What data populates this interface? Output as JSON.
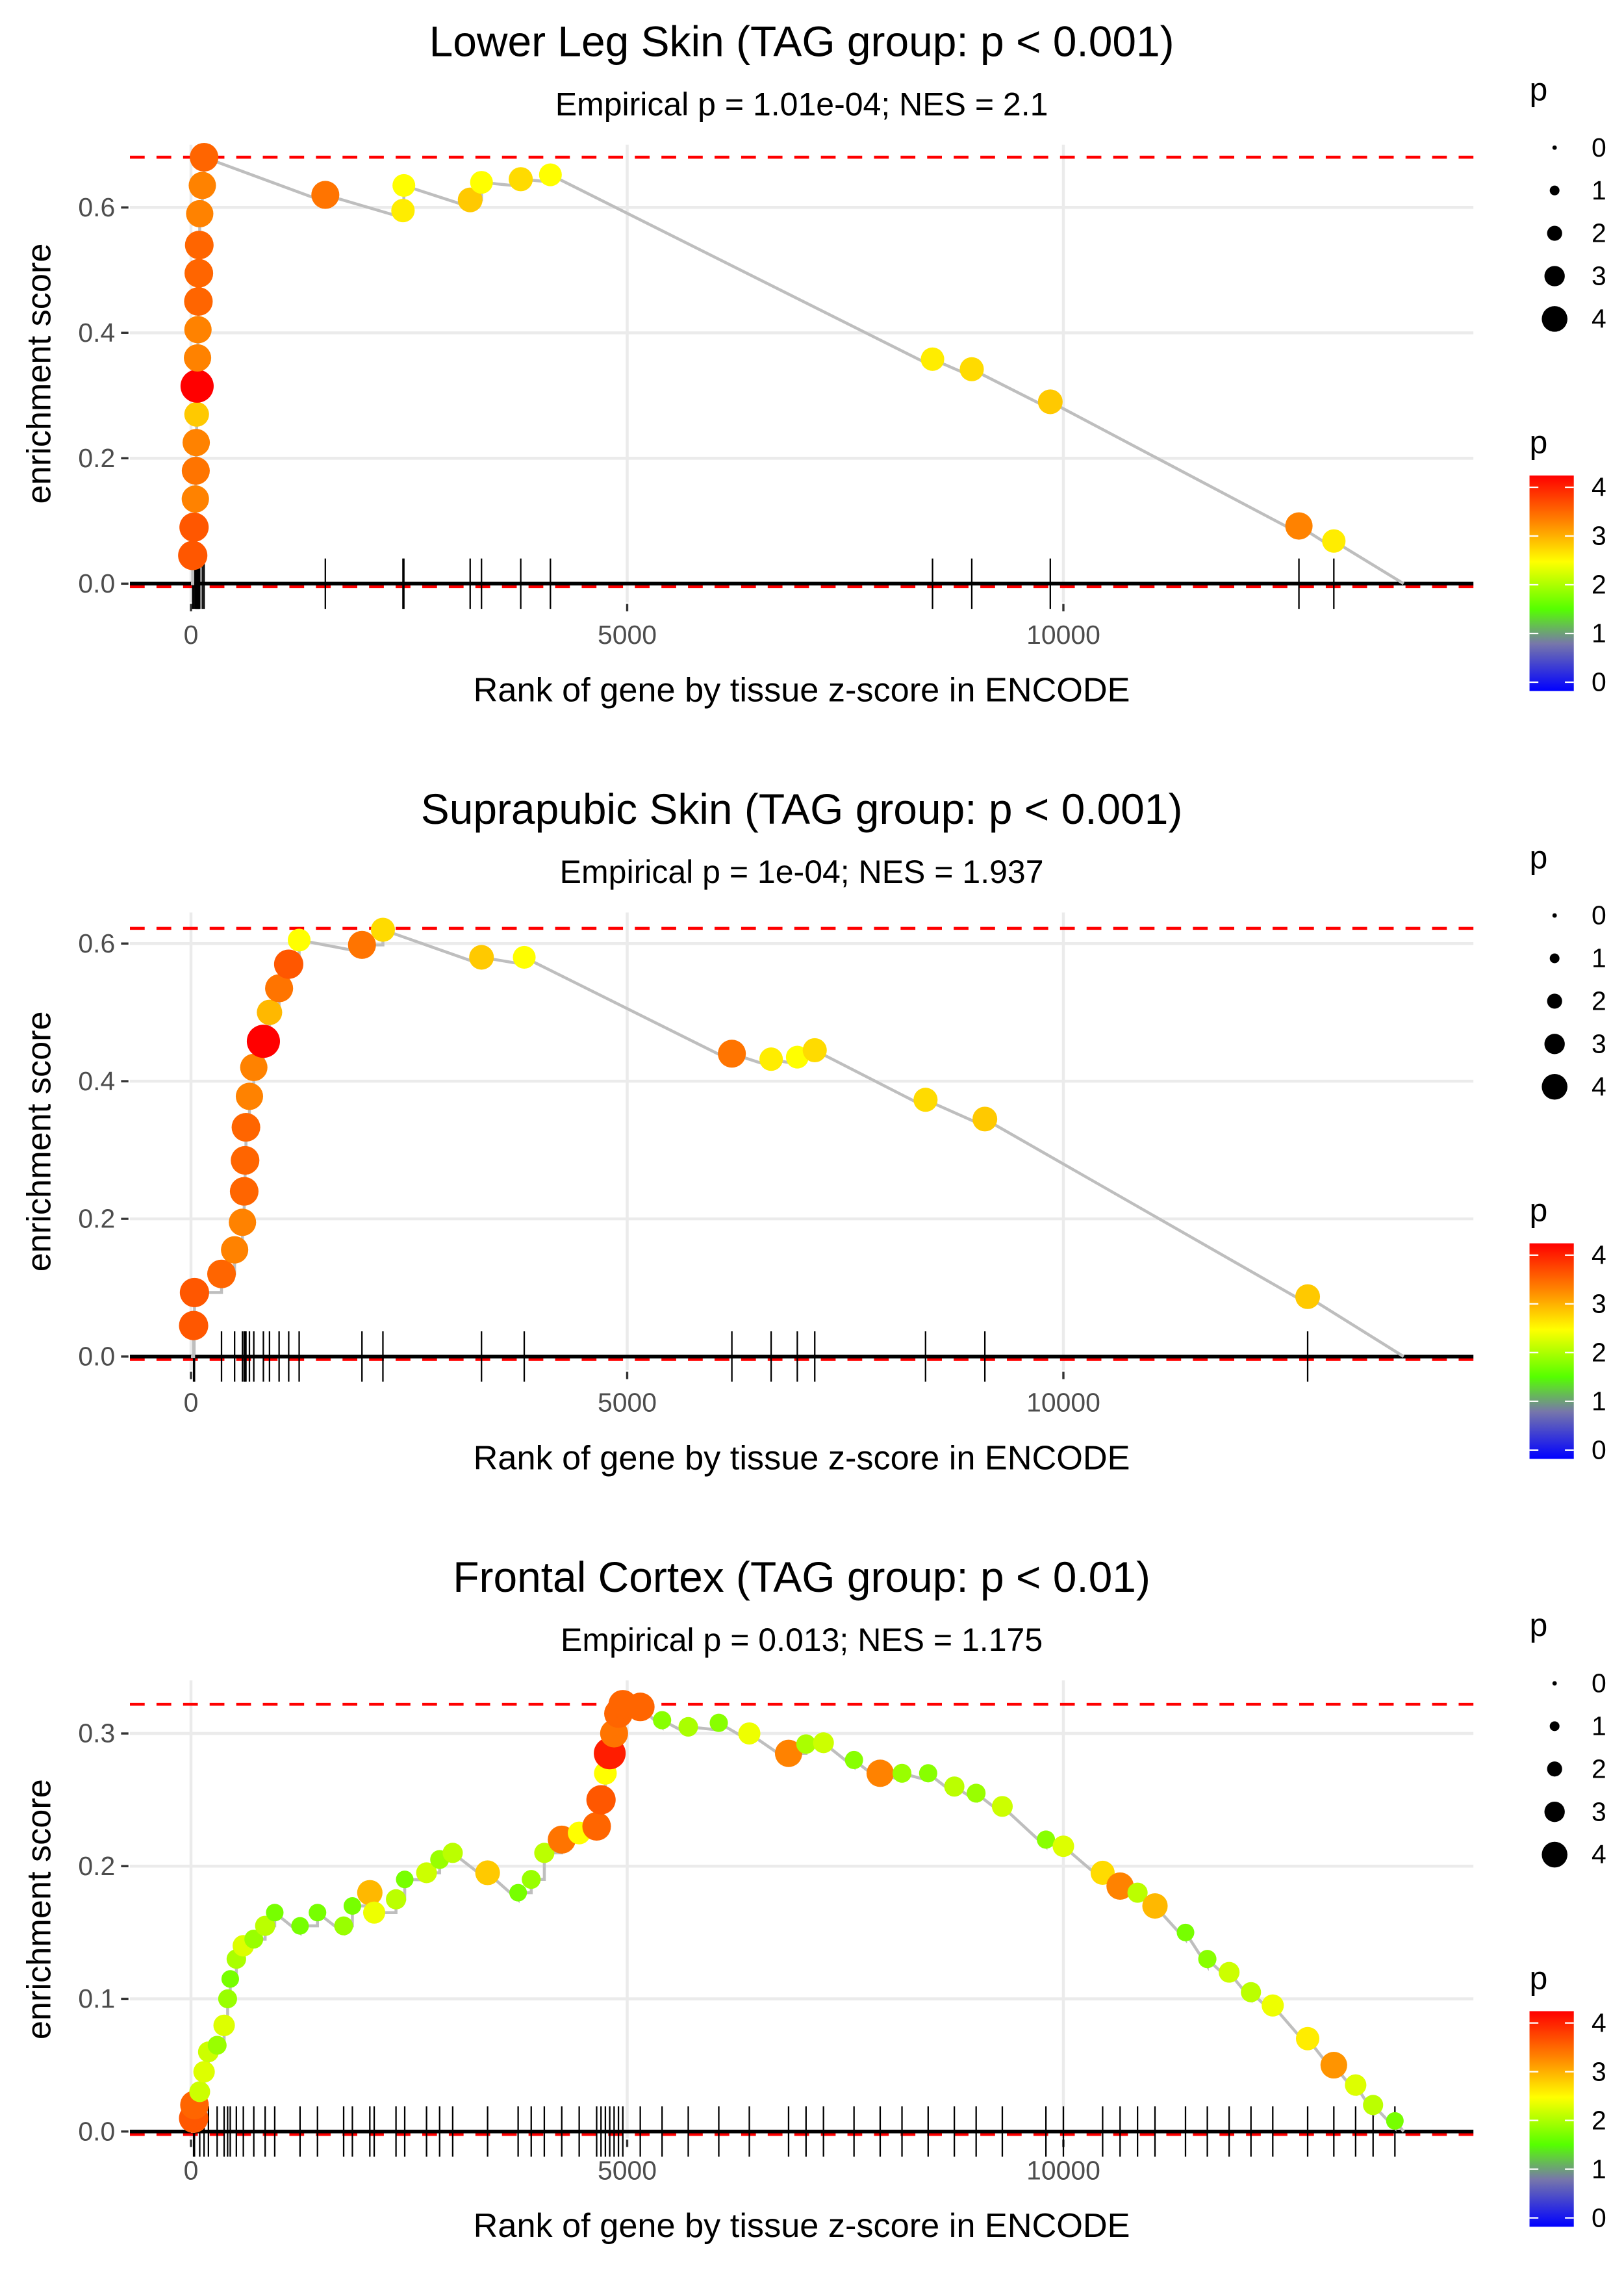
{
  "chart_data": [
    {
      "type": "scatter",
      "title": "Lower Leg Skin (TAG group: p < 0.001)",
      "subtitle": "Empirical p = 1.01e-04; NES = 2.1",
      "xlabel": "Rank of gene by tissue z-score in ENCODE",
      "ylabel": "enrichment score",
      "xlim": [
        -700,
        14700
      ],
      "ylim": [
        -0.03,
        0.7
      ],
      "xticks": [
        0,
        5000,
        10000
      ],
      "yticks": [
        0.0,
        0.2,
        0.4,
        0.6
      ],
      "ytick_labels": [
        "0.0",
        "0.2",
        "0.4",
        "0.6"
      ],
      "max_es": 0.68,
      "end_rank": 13900,
      "grid": true,
      "points": [
        {
          "x": 20,
          "y": 0.045,
          "p": 3.6
        },
        {
          "x": 35,
          "y": 0.09,
          "p": 3.6
        },
        {
          "x": 50,
          "y": 0.135,
          "p": 3.3
        },
        {
          "x": 55,
          "y": 0.18,
          "p": 3.4
        },
        {
          "x": 60,
          "y": 0.225,
          "p": 3.3
        },
        {
          "x": 65,
          "y": 0.27,
          "p": 2.9
        },
        {
          "x": 70,
          "y": 0.315,
          "p": 4.2
        },
        {
          "x": 75,
          "y": 0.36,
          "p": 3.3
        },
        {
          "x": 80,
          "y": 0.405,
          "p": 3.3
        },
        {
          "x": 85,
          "y": 0.45,
          "p": 3.5
        },
        {
          "x": 90,
          "y": 0.495,
          "p": 3.5
        },
        {
          "x": 95,
          "y": 0.54,
          "p": 3.5
        },
        {
          "x": 100,
          "y": 0.59,
          "p": 3.3
        },
        {
          "x": 130,
          "y": 0.635,
          "p": 3.3
        },
        {
          "x": 150,
          "y": 0.68,
          "p": 3.5
        },
        {
          "x": 1540,
          "y": 0.62,
          "p": 3.4
        },
        {
          "x": 2430,
          "y": 0.595,
          "p": 2.7
        },
        {
          "x": 2440,
          "y": 0.635,
          "p": 2.6
        },
        {
          "x": 3200,
          "y": 0.612,
          "p": 2.9
        },
        {
          "x": 3330,
          "y": 0.64,
          "p": 2.6
        },
        {
          "x": 3780,
          "y": 0.645,
          "p": 2.8
        },
        {
          "x": 4120,
          "y": 0.652,
          "p": 2.6
        },
        {
          "x": 8500,
          "y": 0.358,
          "p": 2.7
        },
        {
          "x": 8950,
          "y": 0.342,
          "p": 2.8
        },
        {
          "x": 9850,
          "y": 0.29,
          "p": 2.9
        },
        {
          "x": 12700,
          "y": 0.092,
          "p": 3.3
        },
        {
          "x": 13100,
          "y": 0.068,
          "p": 2.7
        }
      ]
    },
    {
      "type": "scatter",
      "title": "Suprapubic Skin (TAG group: p < 0.001)",
      "subtitle": "Empirical p = 1e-04; NES = 1.937",
      "xlabel": "Rank of gene by tissue z-score in ENCODE",
      "ylabel": "enrichment score",
      "xlim": [
        -700,
        14700
      ],
      "ylim": [
        -0.02,
        0.645
      ],
      "xticks": [
        0,
        5000,
        10000
      ],
      "yticks": [
        0.0,
        0.2,
        0.4,
        0.6
      ],
      "ytick_labels": [
        "0.0",
        "0.2",
        "0.4",
        "0.6"
      ],
      "max_es": 0.622,
      "end_rank": 13900,
      "grid": true,
      "points": [
        {
          "x": 30,
          "y": 0.045,
          "p": 3.6
        },
        {
          "x": 40,
          "y": 0.093,
          "p": 3.6
        },
        {
          "x": 350,
          "y": 0.12,
          "p": 3.5
        },
        {
          "x": 500,
          "y": 0.155,
          "p": 3.3
        },
        {
          "x": 590,
          "y": 0.195,
          "p": 3.3
        },
        {
          "x": 610,
          "y": 0.24,
          "p": 3.5
        },
        {
          "x": 620,
          "y": 0.285,
          "p": 3.5
        },
        {
          "x": 630,
          "y": 0.333,
          "p": 3.5
        },
        {
          "x": 670,
          "y": 0.378,
          "p": 3.3
        },
        {
          "x": 720,
          "y": 0.42,
          "p": 3.3
        },
        {
          "x": 830,
          "y": 0.458,
          "p": 4.2
        },
        {
          "x": 900,
          "y": 0.5,
          "p": 3.0
        },
        {
          "x": 1010,
          "y": 0.535,
          "p": 3.4
        },
        {
          "x": 1120,
          "y": 0.57,
          "p": 3.6
        },
        {
          "x": 1240,
          "y": 0.605,
          "p": 2.6
        },
        {
          "x": 1960,
          "y": 0.598,
          "p": 3.4
        },
        {
          "x": 2200,
          "y": 0.62,
          "p": 2.8
        },
        {
          "x": 3330,
          "y": 0.58,
          "p": 2.9
        },
        {
          "x": 3820,
          "y": 0.58,
          "p": 2.6
        },
        {
          "x": 6200,
          "y": 0.44,
          "p": 3.4
        },
        {
          "x": 6650,
          "y": 0.432,
          "p": 2.7
        },
        {
          "x": 6950,
          "y": 0.435,
          "p": 2.6
        },
        {
          "x": 7150,
          "y": 0.445,
          "p": 2.8
        },
        {
          "x": 8420,
          "y": 0.373,
          "p": 2.8
        },
        {
          "x": 9100,
          "y": 0.345,
          "p": 2.9
        },
        {
          "x": 12800,
          "y": 0.087,
          "p": 2.9
        }
      ]
    },
    {
      "type": "scatter",
      "title": "Frontal Cortex (TAG group: p < 0.01)",
      "subtitle": "Empirical p = 0.013; NES = 1.175",
      "xlabel": "Rank of gene by tissue z-score in ENCODE",
      "ylabel": "enrichment score",
      "xlim": [
        -700,
        14700
      ],
      "ylim": [
        -0.005,
        0.34
      ],
      "xticks": [
        0,
        5000,
        10000
      ],
      "yticks": [
        0.0,
        0.1,
        0.2,
        0.3
      ],
      "ytick_labels": [
        "0.0",
        "0.1",
        "0.2",
        "0.3"
      ],
      "max_es": 0.322,
      "end_rank": 13900,
      "grid": true,
      "points": [
        {
          "x": 30,
          "y": 0.01,
          "p": 3.6
        },
        {
          "x": 40,
          "y": 0.02,
          "p": 3.5
        },
        {
          "x": 100,
          "y": 0.03,
          "p": 2.3
        },
        {
          "x": 150,
          "y": 0.045,
          "p": 2.4
        },
        {
          "x": 200,
          "y": 0.06,
          "p": 2.3
        },
        {
          "x": 300,
          "y": 0.065,
          "p": 2.0
        },
        {
          "x": 380,
          "y": 0.08,
          "p": 2.4
        },
        {
          "x": 420,
          "y": 0.1,
          "p": 2.0
        },
        {
          "x": 450,
          "y": 0.115,
          "p": 1.8
        },
        {
          "x": 520,
          "y": 0.13,
          "p": 2.1
        },
        {
          "x": 600,
          "y": 0.14,
          "p": 2.4
        },
        {
          "x": 720,
          "y": 0.145,
          "p": 2.0
        },
        {
          "x": 850,
          "y": 0.155,
          "p": 2.2
        },
        {
          "x": 960,
          "y": 0.165,
          "p": 1.8
        },
        {
          "x": 1250,
          "y": 0.155,
          "p": 1.8
        },
        {
          "x": 1450,
          "y": 0.165,
          "p": 1.8
        },
        {
          "x": 1750,
          "y": 0.155,
          "p": 2.0
        },
        {
          "x": 1850,
          "y": 0.17,
          "p": 1.8
        },
        {
          "x": 2050,
          "y": 0.18,
          "p": 3.0
        },
        {
          "x": 2100,
          "y": 0.165,
          "p": 2.5
        },
        {
          "x": 2350,
          "y": 0.175,
          "p": 2.2
        },
        {
          "x": 2450,
          "y": 0.19,
          "p": 1.8
        },
        {
          "x": 2700,
          "y": 0.195,
          "p": 2.3
        },
        {
          "x": 2850,
          "y": 0.205,
          "p": 2.0
        },
        {
          "x": 3000,
          "y": 0.21,
          "p": 2.2
        },
        {
          "x": 3400,
          "y": 0.195,
          "p": 2.9
        },
        {
          "x": 3750,
          "y": 0.18,
          "p": 1.8
        },
        {
          "x": 3900,
          "y": 0.19,
          "p": 2.0
        },
        {
          "x": 4050,
          "y": 0.21,
          "p": 2.2
        },
        {
          "x": 4250,
          "y": 0.22,
          "p": 3.4
        },
        {
          "x": 4450,
          "y": 0.225,
          "p": 2.6
        },
        {
          "x": 4650,
          "y": 0.23,
          "p": 3.5
        },
        {
          "x": 4700,
          "y": 0.25,
          "p": 3.6
        },
        {
          "x": 4750,
          "y": 0.27,
          "p": 2.6
        },
        {
          "x": 4800,
          "y": 0.285,
          "p": 4.0
        },
        {
          "x": 4850,
          "y": 0.3,
          "p": 3.4
        },
        {
          "x": 4900,
          "y": 0.315,
          "p": 3.5
        },
        {
          "x": 4950,
          "y": 0.322,
          "p": 3.5
        },
        {
          "x": 5150,
          "y": 0.32,
          "p": 3.5
        },
        {
          "x": 5400,
          "y": 0.31,
          "p": 1.9
        },
        {
          "x": 5700,
          "y": 0.305,
          "p": 2.1
        },
        {
          "x": 6050,
          "y": 0.308,
          "p": 1.9
        },
        {
          "x": 6400,
          "y": 0.3,
          "p": 2.5
        },
        {
          "x": 6850,
          "y": 0.285,
          "p": 3.3
        },
        {
          "x": 7050,
          "y": 0.292,
          "p": 2.1
        },
        {
          "x": 7250,
          "y": 0.293,
          "p": 2.3
        },
        {
          "x": 7600,
          "y": 0.28,
          "p": 1.9
        },
        {
          "x": 7900,
          "y": 0.27,
          "p": 3.3
        },
        {
          "x": 8150,
          "y": 0.27,
          "p": 2.0
        },
        {
          "x": 8450,
          "y": 0.27,
          "p": 1.9
        },
        {
          "x": 8750,
          "y": 0.26,
          "p": 2.2
        },
        {
          "x": 9000,
          "y": 0.255,
          "p": 2.0
        },
        {
          "x": 9300,
          "y": 0.245,
          "p": 2.3
        },
        {
          "x": 9800,
          "y": 0.22,
          "p": 1.9
        },
        {
          "x": 10000,
          "y": 0.215,
          "p": 2.4
        },
        {
          "x": 10450,
          "y": 0.195,
          "p": 2.8
        },
        {
          "x": 10650,
          "y": 0.185,
          "p": 3.3
        },
        {
          "x": 10850,
          "y": 0.18,
          "p": 2.2
        },
        {
          "x": 11050,
          "y": 0.17,
          "p": 3.0
        },
        {
          "x": 11400,
          "y": 0.15,
          "p": 1.8
        },
        {
          "x": 11650,
          "y": 0.13,
          "p": 1.9
        },
        {
          "x": 11900,
          "y": 0.12,
          "p": 2.3
        },
        {
          "x": 12150,
          "y": 0.105,
          "p": 2.2
        },
        {
          "x": 12400,
          "y": 0.095,
          "p": 2.5
        },
        {
          "x": 12800,
          "y": 0.07,
          "p": 2.7
        },
        {
          "x": 13100,
          "y": 0.05,
          "p": 3.2
        },
        {
          "x": 13350,
          "y": 0.035,
          "p": 2.4
        },
        {
          "x": 13550,
          "y": 0.02,
          "p": 2.2
        },
        {
          "x": 13800,
          "y": 0.008,
          "p": 1.8
        }
      ]
    }
  ],
  "legends": {
    "size_title": "p",
    "size_labels": [
      "0",
      "1",
      "2",
      "3",
      "4"
    ],
    "color_title": "p",
    "color_labels": [
      "4",
      "3",
      "2",
      "1",
      "0"
    ],
    "color_scale": [
      "#0000FF",
      "#7777AA",
      "#55FF00",
      "#FFFF00",
      "#FF8800",
      "#FF0000"
    ],
    "ref_line_color": "#FF0000",
    "curve_color": "#BEBEBE"
  }
}
